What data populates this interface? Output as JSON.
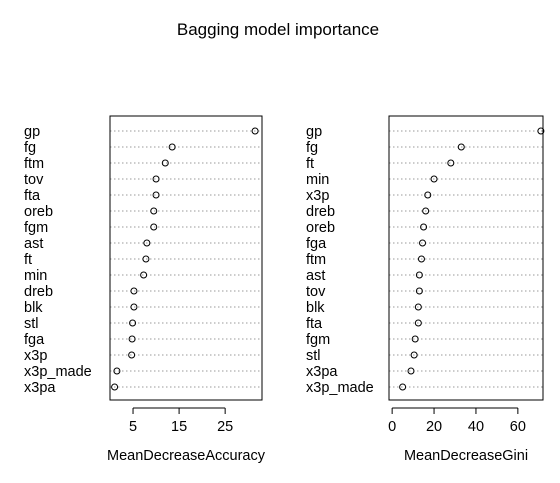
{
  "title": "Bagging model importance",
  "chart_data": [
    {
      "type": "dotchart",
      "xlabel": "MeanDecreaseAccuracy",
      "xlim": [
        0,
        33
      ],
      "xticks": [
        5,
        15,
        25
      ],
      "grid": "dotted horizontal",
      "categories": [
        "gp",
        "fg",
        "ftm",
        "tov",
        "fta",
        "oreb",
        "fgm",
        "ast",
        "ft",
        "min",
        "dreb",
        "blk",
        "stl",
        "fga",
        "x3p",
        "x3p_made",
        "x3pa"
      ],
      "values": [
        31.5,
        13.5,
        12.0,
        10.0,
        10.0,
        9.5,
        9.5,
        8.0,
        7.8,
        7.3,
        5.2,
        5.2,
        4.9,
        4.8,
        4.7,
        1.5,
        1.0
      ]
    },
    {
      "type": "dotchart",
      "xlabel": "MeanDecreaseGini",
      "xlim": [
        -1.5,
        72
      ],
      "xticks": [
        0,
        20,
        40,
        60
      ],
      "grid": "dotted horizontal",
      "categories": [
        "gp",
        "fg",
        "ft",
        "min",
        "x3p",
        "dreb",
        "oreb",
        "fga",
        "ftm",
        "ast",
        "tov",
        "blk",
        "fta",
        "fgm",
        "stl",
        "x3pa",
        "x3p_made"
      ],
      "values": [
        71,
        33,
        28,
        20,
        17,
        16,
        15,
        14.5,
        14,
        13,
        13,
        12.5,
        12.5,
        11,
        10.5,
        9,
        5
      ]
    }
  ]
}
